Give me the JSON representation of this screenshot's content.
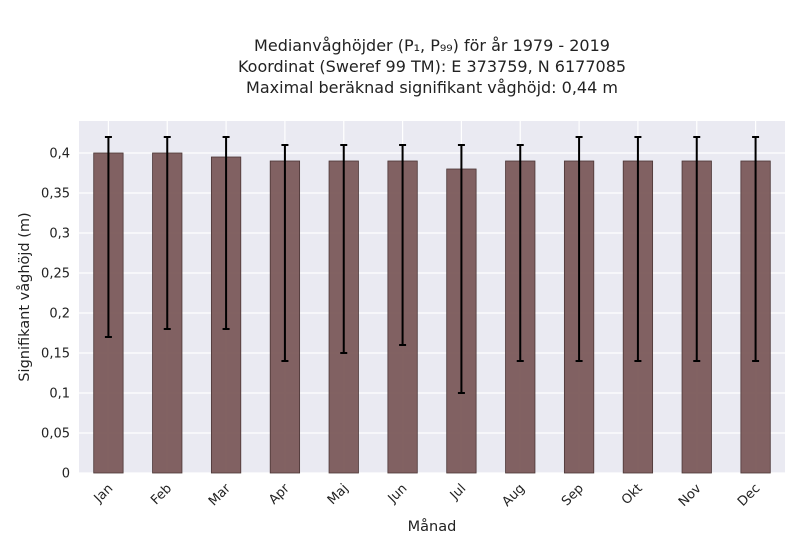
{
  "chart_data": {
    "type": "bar",
    "title_lines": [
      "Medianvåghöjder (P₁, P₉₉) för år 1979 - 2019",
      "Koordinat (Sweref 99 TM): E 373759, N 6177085",
      "Maximal beräknad signifikant våghöjd: 0,44 m"
    ],
    "xlabel": "Månad",
    "ylabel": "Signifikant våghöjd (m)",
    "ylim": [
      0,
      0.44
    ],
    "yticks": [
      0,
      0.05,
      0.1,
      0.15,
      0.2,
      0.25,
      0.3,
      0.35,
      0.4
    ],
    "ytick_labels": [
      "0",
      "0,05",
      "0,1",
      "0,15",
      "0,2",
      "0,25",
      "0,3",
      "0,35",
      "0,4"
    ],
    "categories": [
      "Jan",
      "Feb",
      "Mar",
      "Apr",
      "Maj",
      "Jun",
      "Jul",
      "Aug",
      "Sep",
      "Okt",
      "Nov",
      "Dec"
    ],
    "values": [
      0.4,
      0.4,
      0.395,
      0.39,
      0.39,
      0.39,
      0.38,
      0.39,
      0.39,
      0.39,
      0.39,
      0.39
    ],
    "error_low": [
      0.17,
      0.18,
      0.18,
      0.14,
      0.15,
      0.16,
      0.1,
      0.14,
      0.14,
      0.14,
      0.14,
      0.14
    ],
    "error_high": [
      0.42,
      0.42,
      0.42,
      0.41,
      0.41,
      0.41,
      0.41,
      0.41,
      0.42,
      0.42,
      0.42,
      0.42
    ],
    "grid": true,
    "colors": {
      "bar": "#7b5a5a",
      "bar_edge": "#4a3535",
      "error": "#000000",
      "plot_bg": "#eaeaf2",
      "grid": "#ffffff"
    }
  }
}
